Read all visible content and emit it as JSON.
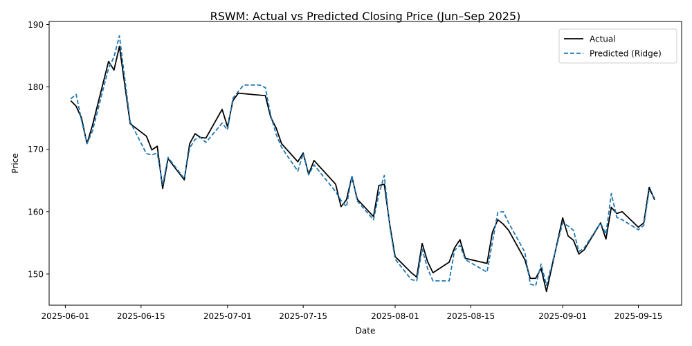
{
  "chart_data": {
    "type": "line",
    "title": "RSWM: Actual vs Predicted Closing Price (Jun–Sep 2025)",
    "xlabel": "Date",
    "ylabel": "Price",
    "x_axis_type": "date",
    "xlim": [
      "2025-05-29",
      "2025-09-23"
    ],
    "ylim": [
      145,
      190.5
    ],
    "x_ticks": [
      "2025-06-01",
      "2025-06-15",
      "2025-07-01",
      "2025-07-15",
      "2025-08-01",
      "2025-08-15",
      "2025-09-01",
      "2025-09-15"
    ],
    "y_ticks": [
      150,
      160,
      170,
      180,
      190
    ],
    "grid": false,
    "legend_position": "upper right",
    "series": [
      {
        "name": "Actual",
        "color": "#000000",
        "style": "solid",
        "points": [
          [
            "2025-06-02",
            177.8
          ],
          [
            "2025-06-03",
            176.9
          ],
          [
            "2025-06-04",
            175.0
          ],
          [
            "2025-06-05",
            170.9
          ],
          [
            "2025-06-06",
            173.8
          ],
          [
            "2025-06-09",
            184.1
          ],
          [
            "2025-06-10",
            182.7
          ],
          [
            "2025-06-11",
            186.5
          ],
          [
            "2025-06-13",
            174.1
          ],
          [
            "2025-06-16",
            172.1
          ],
          [
            "2025-06-17",
            169.9
          ],
          [
            "2025-06-18",
            170.5
          ],
          [
            "2025-06-19",
            163.7
          ],
          [
            "2025-06-20",
            168.5
          ],
          [
            "2025-06-23",
            165.1
          ],
          [
            "2025-06-24",
            170.9
          ],
          [
            "2025-06-25",
            172.5
          ],
          [
            "2025-06-26",
            171.9
          ],
          [
            "2025-06-27",
            171.8
          ],
          [
            "2025-06-30",
            176.4
          ],
          [
            "2025-07-01",
            173.6
          ],
          [
            "2025-07-02",
            177.8
          ],
          [
            "2025-07-03",
            179.0
          ],
          [
            "2025-07-08",
            178.6
          ],
          [
            "2025-07-09",
            175.1
          ],
          [
            "2025-07-10",
            173.4
          ],
          [
            "2025-07-11",
            170.9
          ],
          [
            "2025-07-14",
            168.0
          ],
          [
            "2025-07-15",
            169.4
          ],
          [
            "2025-07-16",
            166.0
          ],
          [
            "2025-07-17",
            168.2
          ],
          [
            "2025-07-21",
            164.4
          ],
          [
            "2025-07-22",
            160.8
          ],
          [
            "2025-07-23",
            161.9
          ],
          [
            "2025-07-24",
            165.6
          ],
          [
            "2025-07-25",
            162.0
          ],
          [
            "2025-07-28",
            159.2
          ],
          [
            "2025-07-29",
            164.2
          ],
          [
            "2025-07-30",
            164.4
          ],
          [
            "2025-07-31",
            158.0
          ],
          [
            "2025-08-01",
            152.8
          ],
          [
            "2025-08-04",
            150.2
          ],
          [
            "2025-08-05",
            149.5
          ],
          [
            "2025-08-06",
            154.9
          ],
          [
            "2025-08-07",
            152.0
          ],
          [
            "2025-08-08",
            150.2
          ],
          [
            "2025-08-11",
            151.9
          ],
          [
            "2025-08-12",
            154.2
          ],
          [
            "2025-08-13",
            155.5
          ],
          [
            "2025-08-14",
            152.5
          ],
          [
            "2025-08-18",
            151.7
          ],
          [
            "2025-08-19",
            156.7
          ],
          [
            "2025-08-20",
            158.7
          ],
          [
            "2025-08-21",
            158.0
          ],
          [
            "2025-08-22",
            157.0
          ],
          [
            "2025-08-25",
            152.3
          ],
          [
            "2025-08-26",
            149.3
          ],
          [
            "2025-08-27",
            149.3
          ],
          [
            "2025-08-28",
            150.9
          ],
          [
            "2025-08-29",
            147.2
          ],
          [
            "2025-09-01",
            159.0
          ],
          [
            "2025-09-02",
            156.1
          ],
          [
            "2025-09-03",
            155.4
          ],
          [
            "2025-09-04",
            153.2
          ],
          [
            "2025-09-05",
            153.9
          ],
          [
            "2025-09-08",
            158.2
          ],
          [
            "2025-09-09",
            155.6
          ],
          [
            "2025-09-10",
            160.7
          ],
          [
            "2025-09-11",
            159.7
          ],
          [
            "2025-09-12",
            160.0
          ],
          [
            "2025-09-15",
            157.5
          ],
          [
            "2025-09-16",
            158.2
          ],
          [
            "2025-09-17",
            163.9
          ],
          [
            "2025-09-18",
            161.9
          ]
        ]
      },
      {
        "name": "Predicted (Ridge)",
        "color": "#1f77b4",
        "style": "dashed",
        "points": [
          [
            "2025-06-02",
            178.1
          ],
          [
            "2025-06-03",
            178.8
          ],
          [
            "2025-06-04",
            174.6
          ],
          [
            "2025-06-05",
            170.9
          ],
          [
            "2025-06-06",
            172.9
          ],
          [
            "2025-06-09",
            183.0
          ],
          [
            "2025-06-10",
            184.8
          ],
          [
            "2025-06-11",
            188.2
          ],
          [
            "2025-06-13",
            174.4
          ],
          [
            "2025-06-16",
            169.3
          ],
          [
            "2025-06-17",
            169.1
          ],
          [
            "2025-06-18",
            169.4
          ],
          [
            "2025-06-19",
            164.3
          ],
          [
            "2025-06-20",
            168.7
          ],
          [
            "2025-06-23",
            165.3
          ],
          [
            "2025-06-24",
            170.2
          ],
          [
            "2025-06-25",
            171.6
          ],
          [
            "2025-06-26",
            171.9
          ],
          [
            "2025-06-27",
            171.1
          ],
          [
            "2025-06-30",
            174.2
          ],
          [
            "2025-07-01",
            173.1
          ],
          [
            "2025-07-02",
            178.2
          ],
          [
            "2025-07-03",
            179.3
          ],
          [
            "2025-07-04",
            180.3
          ],
          [
            "2025-07-07",
            180.3
          ],
          [
            "2025-07-08",
            179.9
          ],
          [
            "2025-07-09",
            175.4
          ],
          [
            "2025-07-10",
            172.4
          ],
          [
            "2025-07-11",
            170.3
          ],
          [
            "2025-07-14",
            166.5
          ],
          [
            "2025-07-15",
            169.3
          ],
          [
            "2025-07-16",
            165.9
          ],
          [
            "2025-07-17",
            167.5
          ],
          [
            "2025-07-21",
            163.2
          ],
          [
            "2025-07-22",
            161.8
          ],
          [
            "2025-07-23",
            160.8
          ],
          [
            "2025-07-24",
            165.8
          ],
          [
            "2025-07-25",
            161.7
          ],
          [
            "2025-07-28",
            158.7
          ],
          [
            "2025-07-29",
            162.8
          ],
          [
            "2025-07-30",
            165.8
          ],
          [
            "2025-07-31",
            157.7
          ],
          [
            "2025-08-01",
            152.4
          ],
          [
            "2025-08-04",
            149.1
          ],
          [
            "2025-08-05",
            148.9
          ],
          [
            "2025-08-06",
            154.0
          ],
          [
            "2025-08-07",
            150.9
          ],
          [
            "2025-08-08",
            148.9
          ],
          [
            "2025-08-11",
            148.9
          ],
          [
            "2025-08-12",
            153.8
          ],
          [
            "2025-08-13",
            154.6
          ],
          [
            "2025-08-14",
            152.3
          ],
          [
            "2025-08-18",
            150.3
          ],
          [
            "2025-08-19",
            155.1
          ],
          [
            "2025-08-20",
            159.9
          ],
          [
            "2025-08-21",
            160.0
          ],
          [
            "2025-08-22",
            158.2
          ],
          [
            "2025-08-25",
            153.5
          ],
          [
            "2025-08-26",
            148.4
          ],
          [
            "2025-08-27",
            148.1
          ],
          [
            "2025-08-28",
            151.6
          ],
          [
            "2025-08-29",
            148.2
          ],
          [
            "2025-09-01",
            158.2
          ],
          [
            "2025-09-02",
            157.7
          ],
          [
            "2025-09-03",
            157.0
          ],
          [
            "2025-09-04",
            153.6
          ],
          [
            "2025-09-05",
            154.2
          ],
          [
            "2025-09-08",
            158.2
          ],
          [
            "2025-09-09",
            156.4
          ],
          [
            "2025-09-10",
            162.9
          ],
          [
            "2025-09-11",
            159.1
          ],
          [
            "2025-09-12",
            158.7
          ],
          [
            "2025-09-15",
            157.1
          ],
          [
            "2025-09-16",
            157.8
          ],
          [
            "2025-09-17",
            163.4
          ],
          [
            "2025-09-18",
            162.2
          ]
        ]
      }
    ]
  }
}
